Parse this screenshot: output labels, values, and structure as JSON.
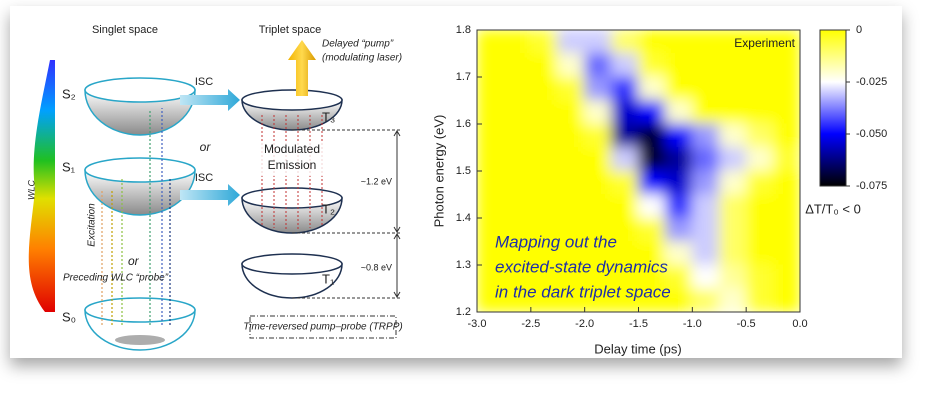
{
  "diagram": {
    "singlet_title": "Singlet space",
    "triplet_title": "Triplet space",
    "s2": "S₂",
    "s1": "S₁",
    "s0": "S₀",
    "t3": "T₃",
    "t2": "T₂",
    "t1": "T₁",
    "isc_top": "ISC",
    "isc_bottom": "ISC",
    "or_left": "or",
    "or_mid": "or",
    "emission": [
      "Modulated",
      "Emission"
    ],
    "pump": [
      "Delayed “pump”",
      "(modulating laser)"
    ],
    "gap_high": "~1.2 eV",
    "gap_low": "~0.8 eV",
    "wlc": "WLC",
    "excitation": "Excitation",
    "probe": "Preceding WLC “probe”",
    "trpp": "Time-reversed pump–probe (TRPP)"
  },
  "chart_data": {
    "type": "heatmap",
    "title": "Experiment",
    "xlabel": "Delay time (ps)",
    "ylabel": "Photon energy (eV)",
    "annotation": [
      "Mapping out the",
      "excited-state dynamics",
      "in the dark triplet space"
    ],
    "xlim": [
      -3,
      0
    ],
    "xticks": [
      {
        "value": -3,
        "label": "-3.0"
      },
      {
        "value": -2.5,
        "label": "-2.5"
      },
      {
        "value": -2,
        "label": "-2.0"
      },
      {
        "value": -1.5,
        "label": "-1.5"
      },
      {
        "value": -1,
        "label": "-1.0"
      },
      {
        "value": -0.5,
        "label": "-0.5"
      },
      {
        "value": 0,
        "label": "0.0"
      }
    ],
    "ylim": [
      1.2,
      1.8
    ],
    "yticks": [
      1.2,
      1.3,
      1.4,
      1.5,
      1.6,
      1.7,
      1.8
    ],
    "x": [
      -2.875,
      -2.625,
      -2.375,
      -2.125,
      -1.875,
      -1.625,
      -1.375,
      -1.125,
      -0.875,
      -0.625,
      -0.375,
      -0.125
    ],
    "y": [
      1.775,
      1.725,
      1.675,
      1.625,
      1.575,
      1.525,
      1.475,
      1.425,
      1.375,
      1.325,
      1.275,
      1.225
    ],
    "values": [
      [
        0,
        0,
        -0.005,
        -0.03,
        -0.03,
        -0.01,
        0,
        0,
        0,
        0,
        0,
        0
      ],
      [
        0,
        0,
        0,
        -0.02,
        -0.04,
        -0.03,
        -0.005,
        0,
        0,
        0,
        0,
        0
      ],
      [
        0,
        0,
        0,
        -0.005,
        -0.035,
        -0.045,
        -0.02,
        0,
        0,
        0,
        0,
        0
      ],
      [
        0,
        0,
        0,
        0,
        -0.02,
        -0.055,
        -0.05,
        -0.02,
        0,
        0,
        0,
        0
      ],
      [
        0,
        0,
        0,
        0,
        -0.005,
        -0.06,
        -0.07,
        -0.05,
        -0.035,
        -0.02,
        -0.01,
        0
      ],
      [
        0,
        0,
        0,
        0,
        0,
        -0.03,
        -0.07,
        -0.06,
        -0.04,
        -0.03,
        -0.02,
        -0.005
      ],
      [
        0,
        0,
        0,
        0,
        0,
        -0.005,
        -0.05,
        -0.055,
        -0.035,
        -0.02,
        -0.005,
        0
      ],
      [
        0,
        0,
        0,
        0,
        0,
        0,
        -0.025,
        -0.045,
        -0.03,
        -0.01,
        0,
        0
      ],
      [
        0,
        0,
        0,
        0,
        0,
        0,
        -0.005,
        -0.035,
        -0.03,
        -0.01,
        0,
        0
      ],
      [
        0,
        0,
        0,
        0,
        0,
        0,
        0,
        -0.02,
        -0.03,
        -0.01,
        0,
        0
      ],
      [
        0,
        0,
        0,
        0,
        0,
        0,
        0,
        -0.005,
        -0.025,
        -0.015,
        -0.005,
        0
      ],
      [
        0,
        0,
        0,
        0,
        0,
        0,
        0,
        0,
        -0.01,
        -0.02,
        -0.005,
        0
      ]
    ],
    "clim": [
      -0.075,
      0
    ],
    "colors": [
      "#000000",
      "#0000ff",
      "#ffffff",
      "#ffff00"
    ],
    "cticks": [
      0,
      -0.025,
      {
        "value": -0.05,
        "label": "-0.050"
      },
      -0.075
    ],
    "clabel": "ΔT/T₀ < 0"
  }
}
